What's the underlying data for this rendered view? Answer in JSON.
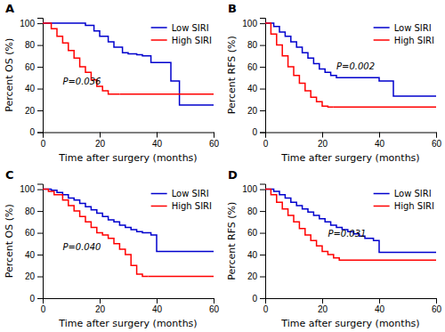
{
  "chart_data": [
    {
      "type": "step",
      "title": "A",
      "x_label": "Time after surgery (months)",
      "y_label": "Percent OS (%)",
      "annotations": [
        {
          "text": "P=0.036",
          "x": 7,
          "y": 44
        }
      ],
      "series": [
        {
          "name": "Low SIRI",
          "color": "#0000CD",
          "x": [
            0,
            5,
            8,
            10,
            13,
            15,
            18,
            20,
            23,
            25,
            28,
            30,
            33,
            35,
            38,
            40,
            43,
            45,
            48,
            50
          ],
          "values": [
            100,
            100,
            100,
            100,
            100,
            98,
            93,
            88,
            83,
            78,
            73,
            72,
            71,
            70,
            64,
            64,
            64,
            47,
            25,
            25
          ]
        },
        {
          "name": "High SIRI",
          "color": "#FF0000",
          "x": [
            0,
            3,
            5,
            7,
            9,
            11,
            13,
            15,
            17,
            19,
            21,
            23,
            25,
            27
          ],
          "values": [
            100,
            95,
            88,
            82,
            75,
            68,
            60,
            55,
            48,
            42,
            38,
            35,
            35,
            35
          ]
        }
      ],
      "xlim": [
        0,
        60
      ],
      "ylim": [
        0,
        105
      ],
      "xticks": [
        0,
        20,
        40,
        60
      ],
      "yticks": [
        0,
        20,
        40,
        60,
        80,
        100
      ],
      "legend": "upper right"
    },
    {
      "type": "step",
      "title": "B",
      "x_label": "Time after surgery (months)",
      "y_label": "Percent RFS (%)",
      "annotations": [
        {
          "text": "P=0.002",
          "x": 25,
          "y": 58
        }
      ],
      "series": [
        {
          "name": "Low SIRI",
          "color": "#0000CD",
          "x": [
            0,
            3,
            5,
            7,
            9,
            11,
            13,
            15,
            17,
            19,
            21,
            23,
            25,
            27,
            29,
            31,
            35,
            38,
            40,
            45,
            50
          ],
          "values": [
            100,
            97,
            92,
            88,
            83,
            78,
            73,
            68,
            63,
            58,
            55,
            52,
            50,
            50,
            50,
            50,
            50,
            50,
            47,
            33,
            33
          ]
        },
        {
          "name": "High SIRI",
          "color": "#FF0000",
          "x": [
            0,
            2,
            4,
            6,
            8,
            10,
            12,
            14,
            16,
            18,
            20,
            22,
            24
          ],
          "values": [
            100,
            90,
            80,
            70,
            60,
            52,
            45,
            38,
            32,
            28,
            24,
            23,
            23
          ]
        }
      ],
      "xlim": [
        0,
        60
      ],
      "ylim": [
        0,
        105
      ],
      "xticks": [
        0,
        20,
        40,
        60
      ],
      "yticks": [
        0,
        20,
        40,
        60,
        80,
        100
      ],
      "legend": "upper right"
    },
    {
      "type": "step",
      "title": "C",
      "x_label": "Time after surgery (months)",
      "y_label": "Percent OS (%)",
      "annotations": [
        {
          "text": "P=0.040",
          "x": 7,
          "y": 44
        }
      ],
      "series": [
        {
          "name": "Low SIRI",
          "color": "#0000CD",
          "x": [
            0,
            3,
            5,
            7,
            9,
            11,
            13,
            15,
            17,
            19,
            21,
            23,
            25,
            27,
            29,
            31,
            33,
            35,
            38,
            40,
            43,
            45,
            48,
            50
          ],
          "values": [
            100,
            99,
            97,
            95,
            92,
            90,
            87,
            84,
            81,
            78,
            75,
            72,
            70,
            67,
            65,
            63,
            61,
            60,
            58,
            43,
            43,
            43,
            43,
            43
          ]
        },
        {
          "name": "High SIRI",
          "color": "#FF0000",
          "x": [
            0,
            2,
            4,
            7,
            9,
            11,
            13,
            15,
            17,
            19,
            21,
            23,
            25,
            27,
            29,
            31,
            33,
            35,
            37
          ],
          "values": [
            100,
            98,
            95,
            90,
            85,
            80,
            75,
            70,
            65,
            60,
            58,
            55,
            50,
            45,
            40,
            30,
            22,
            20,
            20
          ]
        }
      ],
      "xlim": [
        0,
        60
      ],
      "ylim": [
        0,
        105
      ],
      "xticks": [
        0,
        20,
        40,
        60
      ],
      "yticks": [
        0,
        20,
        40,
        60,
        80,
        100
      ],
      "legend": "upper right"
    },
    {
      "type": "step",
      "title": "D",
      "x_label": "Time after surgery (months)",
      "y_label": "Percent RFS (%)",
      "annotations": [
        {
          "text": "P=0.031",
          "x": 22,
          "y": 56
        }
      ],
      "series": [
        {
          "name": "Low SIRI",
          "color": "#0000CD",
          "x": [
            0,
            3,
            5,
            7,
            9,
            11,
            13,
            15,
            17,
            19,
            21,
            23,
            25,
            27,
            29,
            31,
            33,
            35,
            38,
            40,
            43,
            45,
            48,
            50
          ],
          "values": [
            100,
            98,
            95,
            92,
            88,
            85,
            82,
            79,
            76,
            73,
            70,
            67,
            65,
            63,
            61,
            59,
            57,
            55,
            53,
            42,
            42,
            42,
            42,
            42
          ]
        },
        {
          "name": "High SIRI",
          "color": "#FF0000",
          "x": [
            0,
            2,
            4,
            6,
            8,
            10,
            12,
            14,
            16,
            18,
            20,
            22,
            24,
            26,
            28,
            30,
            33,
            35
          ],
          "values": [
            100,
            95,
            88,
            82,
            76,
            70,
            64,
            58,
            53,
            48,
            43,
            40,
            37,
            35,
            35,
            35,
            35,
            35
          ]
        }
      ],
      "xlim": [
        0,
        60
      ],
      "ylim": [
        0,
        105
      ],
      "xticks": [
        0,
        20,
        40,
        60
      ],
      "yticks": [
        0,
        20,
        40,
        60,
        80,
        100
      ],
      "legend": "upper right"
    }
  ]
}
